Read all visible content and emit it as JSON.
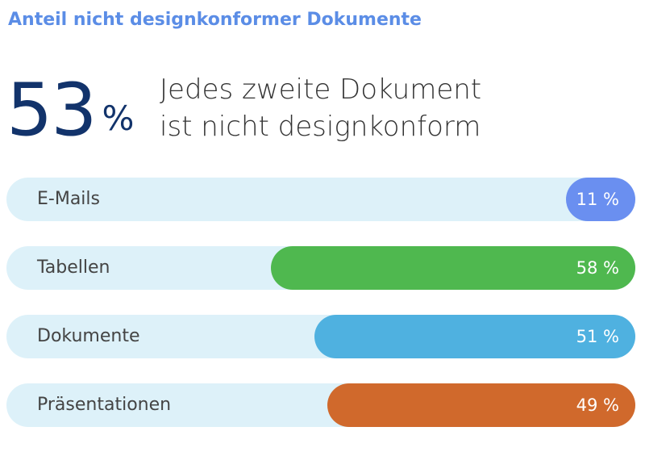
{
  "title": "Anteil nicht designkonformer Dokumente",
  "kpi": {
    "value": "53",
    "unit": "%",
    "headline_line1": "Jedes zweite Dokument",
    "headline_line2": "ist nicht designkonform"
  },
  "chart_data": {
    "type": "bar",
    "orientation": "horizontal",
    "title": "Anteil nicht designkonformer Dokumente",
    "categories": [
      "E-Mails",
      "Tabellen",
      "Dokumente",
      "Präsentationen"
    ],
    "values": [
      11,
      58,
      51,
      49
    ],
    "value_labels": [
      "11 %",
      "58 %",
      "51 %",
      "49 %"
    ],
    "colors": [
      "#6a8ff0",
      "#4fb84f",
      "#4fb1e0",
      "#d0692c"
    ],
    "track_color": "#ddf1f9",
    "ylim": [
      0,
      100
    ],
    "grid": false,
    "legend": "none"
  }
}
